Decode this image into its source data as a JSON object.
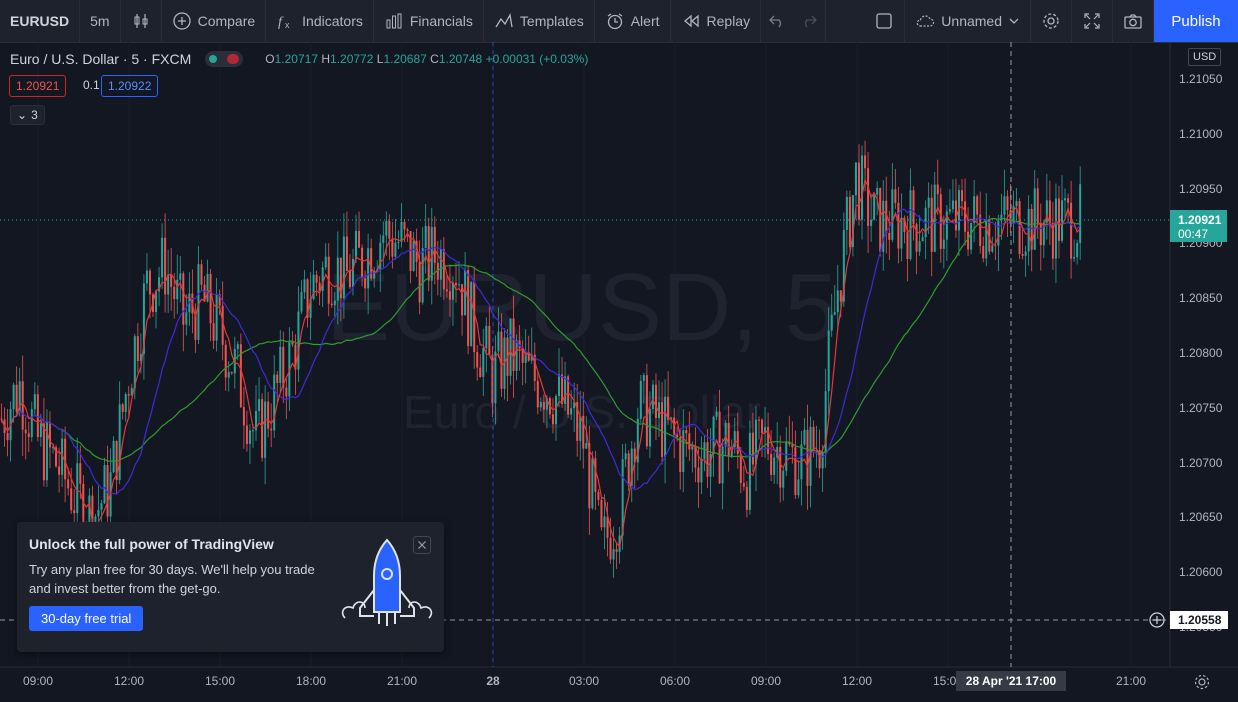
{
  "toolbar": {
    "symbol": "EURUSD",
    "interval": "5m",
    "compare": "Compare",
    "indicators": "Indicators",
    "financials": "Financials",
    "templates": "Templates",
    "alert": "Alert",
    "replay": "Replay",
    "layout_name": "Unnamed",
    "publish": "Publish",
    "icons": [
      "candles-icon",
      "plus-circle-icon",
      "fx-icon",
      "financials-icon",
      "templates-icon",
      "alarm-clock-icon",
      "replay-icon",
      "undo-icon",
      "redo-icon",
      "square-icon",
      "cloud-icon",
      "chevron-down-icon",
      "gear-icon",
      "fullscreen-icon",
      "camera-icon"
    ]
  },
  "legend": {
    "title": "Euro / U.S. Dollar · 5 · FXCM",
    "open_label": "O",
    "open": "1.20717",
    "high_label": "H",
    "high": "1.20772",
    "low_label": "L",
    "low": "1.20687",
    "close_label": "C",
    "close": "1.20748",
    "change": "+0.00031 (+0.03%)"
  },
  "trade": {
    "sell": "1.20921",
    "spread": "0.1",
    "buy": "1.20922"
  },
  "indicators_collapsed": {
    "count": "3"
  },
  "watermark": {
    "symbol": "EURUSD, 5",
    "name": "Euro / U.S. Dollar"
  },
  "price_axis": {
    "currency": "USD",
    "labels": [
      "1.21050",
      "1.21000",
      "1.20950",
      "1.20900",
      "1.20850",
      "1.20800",
      "1.20750",
      "1.20700",
      "1.20650",
      "1.20600",
      "1.20550"
    ],
    "current_price": "1.20921",
    "countdown": "00:47",
    "crosshair_price": "1.20558"
  },
  "time_axis": {
    "labels": [
      "09:00",
      "12:00",
      "15:00",
      "18:00",
      "21:00",
      "28",
      "03:00",
      "06:00",
      "09:00",
      "12:00",
      "15:00",
      "21:00"
    ],
    "crosshair_time": "28 Apr '21  17:00"
  },
  "colors": {
    "up": "#26a69a",
    "down": "#ef5350",
    "ma_fast": "#e53935",
    "ma_mid": "#3f2bd6",
    "ma_slow": "#2e9c2e",
    "accent": "#2962ff"
  },
  "promo": {
    "title": "Unlock the full power of TradingView",
    "body": "Try any plan free for 30 days. We'll help you trade and invest better from the get-go.",
    "cta": "30-day free trial"
  },
  "chart_data": {
    "type": "line",
    "title": "Euro / U.S. Dollar · 5 · FXCM",
    "xlabel": "",
    "ylabel": "",
    "ylim": [
      1.2053,
      1.2108
    ],
    "x_ticks": [
      "09:00",
      "12:00",
      "15:00",
      "18:00",
      "21:00",
      "28",
      "03:00",
      "06:00",
      "09:00",
      "12:00",
      "15:00",
      "21:00"
    ],
    "series": [
      {
        "x_hours": [
          0,
          0.5,
          1,
          1.5,
          2,
          2.5,
          3,
          3.5,
          4,
          4.5,
          5,
          5.5,
          6,
          6.5,
          7,
          7.5,
          8,
          8.5,
          9,
          9.5,
          10,
          10.5,
          11,
          11.5,
          12,
          12.5,
          13,
          13.5,
          14,
          14.5,
          15,
          15.5,
          16,
          16.5,
          17,
          17.5,
          18,
          18.5,
          19,
          19.5,
          20,
          20.5,
          21,
          21.5,
          22,
          22.5,
          23,
          23.5,
          24,
          24.5,
          25,
          25.5,
          26,
          26.5,
          27,
          27.5,
          28,
          28.5,
          29,
          29.5,
          30,
          30.5,
          31,
          31.5,
          32,
          32.5,
          33,
          33.5,
          34
        ],
        "close": [
          1.2074,
          1.2077,
          1.2072,
          1.207,
          1.2067,
          1.2065,
          1.2068,
          1.2078,
          1.2086,
          1.2088,
          1.2083,
          1.2085,
          1.2082,
          1.2078,
          1.2072,
          1.2076,
          1.208,
          1.2086,
          1.2088,
          1.2087,
          1.2089,
          1.2091,
          1.209,
          1.2088,
          1.2089,
          1.2088,
          1.2082,
          1.2078,
          1.208,
          1.2078,
          1.2077,
          1.2075,
          1.2072,
          1.2062,
          1.2066,
          1.2075,
          1.2074,
          1.2072,
          1.2071,
          1.2071,
          1.2072,
          1.2069,
          1.2072,
          1.2071,
          1.207,
          1.2072,
          1.2086,
          1.2096,
          1.2092,
          1.2092,
          1.2092,
          1.2092,
          1.2092,
          1.2092,
          1.2092,
          1.2092,
          1.2092,
          1.2092,
          1.2092,
          1.2092,
          1.2092,
          1.2092,
          1.2092,
          1.2092,
          1.2092,
          1.2092,
          1.2092,
          1.2092,
          1.2092
        ]
      }
    ]
  }
}
